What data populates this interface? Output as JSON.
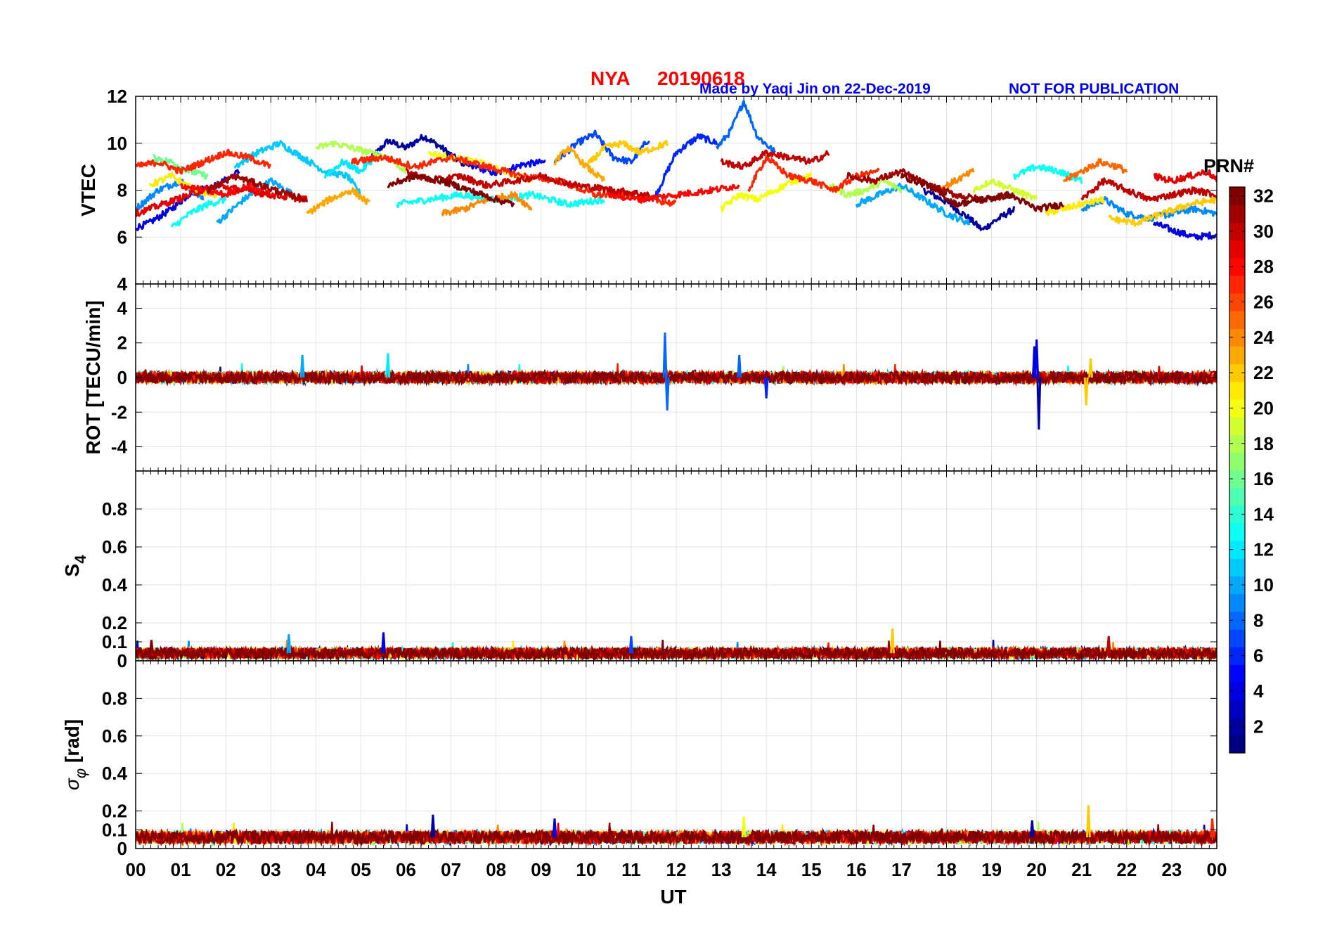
{
  "title": {
    "station": "NYA",
    "date": "20190618",
    "credit": "Made by Yaqi Jin on 22-Dec-2019",
    "notice": "NOT FOR PUBLICATION",
    "title_color": "#ff0000",
    "credit_color": "#0000ff"
  },
  "x_axis": {
    "label": "UT",
    "range": [
      0,
      24
    ],
    "tick_labels": [
      "00",
      "01",
      "02",
      "03",
      "04",
      "05",
      "06",
      "07",
      "08",
      "09",
      "10",
      "11",
      "12",
      "13",
      "14",
      "15",
      "16",
      "17",
      "18",
      "19",
      "20",
      "21",
      "22",
      "23",
      "00"
    ]
  },
  "colorbar": {
    "label": "PRN#",
    "range": [
      1,
      32
    ],
    "tick_values": [
      2,
      4,
      6,
      8,
      10,
      12,
      14,
      16,
      18,
      20,
      22,
      24,
      26,
      28,
      30,
      32
    ],
    "tick_labels": [
      "2",
      "4",
      "6",
      "8",
      "10",
      "12",
      "14",
      "16",
      "18",
      "20",
      "22",
      "24",
      "26",
      "28",
      "30",
      "32"
    ],
    "colormap": "jet"
  },
  "chart_data": [
    {
      "type": "line",
      "panel": "vtec",
      "ylabel": "VTEC",
      "ylim": [
        4,
        12
      ],
      "yticks": [
        4,
        6,
        8,
        10,
        12
      ],
      "ytick_labels": [
        "4",
        "6",
        "8",
        "10",
        "12"
      ],
      "grid": true,
      "xlim": [
        0,
        24
      ],
      "series": [
        {
          "prn": 2,
          "x": [
            5.2,
            5.6,
            6.0,
            6.4,
            6.8,
            7.2,
            7.6
          ],
          "y": [
            9.3,
            10.1,
            9.8,
            10.3,
            9.8,
            9.2,
            9.0
          ]
        },
        {
          "prn": 2,
          "x": [
            17.5,
            18.0,
            18.5,
            18.8,
            19.0,
            19.5
          ],
          "y": [
            8.0,
            7.5,
            6.8,
            6.3,
            6.6,
            7.2
          ]
        },
        {
          "prn": 5,
          "x": [
            7.4,
            8.0,
            8.6,
            9.1
          ],
          "y": [
            9.1,
            8.7,
            9.1,
            9.2
          ]
        },
        {
          "prn": 4,
          "x": [
            0.0,
            0.3,
            0.8,
            1.3,
            1.8,
            2.3
          ],
          "y": [
            6.4,
            6.6,
            7.2,
            8.0,
            8.2,
            8.8
          ]
        },
        {
          "prn": 4,
          "x": [
            22.6,
            23.0,
            23.5,
            24.0
          ],
          "y": [
            6.6,
            6.3,
            6.0,
            6.1
          ]
        },
        {
          "prn": 6,
          "x": [
            11.5,
            12.0,
            12.5,
            12.9
          ],
          "y": [
            7.6,
            9.6,
            10.3,
            10.0
          ]
        },
        {
          "prn": 7,
          "x": [
            9.3,
            9.8,
            10.2,
            10.6,
            11.0,
            11.4
          ],
          "y": [
            9.2,
            10.0,
            10.4,
            9.4,
            9.2,
            10.2
          ]
        },
        {
          "prn": 8,
          "x": [
            12.9,
            13.2,
            13.5,
            13.8,
            14.2
          ],
          "y": [
            9.8,
            10.5,
            11.8,
            10.3,
            9.6
          ]
        },
        {
          "prn": 9,
          "x": [
            0.0,
            0.5,
            1.0,
            1.5
          ],
          "y": [
            7.2,
            8.0,
            8.4,
            7.6
          ]
        },
        {
          "prn": 9,
          "x": [
            21.0,
            21.5,
            22.0,
            22.5,
            23.0,
            23.5,
            24.0
          ],
          "y": [
            7.2,
            7.6,
            7.0,
            6.8,
            7.0,
            7.2,
            7.0
          ]
        },
        {
          "prn": 10,
          "x": [
            1.8,
            2.4,
            3.0,
            3.5
          ],
          "y": [
            6.6,
            7.6,
            8.4,
            7.8
          ]
        },
        {
          "prn": 10,
          "x": [
            16.0,
            16.5,
            17.0,
            17.5,
            18.0,
            18.5
          ],
          "y": [
            7.4,
            7.8,
            8.2,
            7.6,
            7.0,
            6.6
          ]
        },
        {
          "prn": 11,
          "x": [
            2.2,
            2.7,
            3.2,
            3.7,
            4.2,
            4.7,
            5.0
          ],
          "y": [
            9.0,
            9.6,
            10.0,
            9.4,
            8.8,
            8.6,
            7.8
          ]
        },
        {
          "prn": 12,
          "x": [
            4.2,
            4.6,
            5.0,
            5.4
          ],
          "y": [
            8.6,
            9.2,
            8.8,
            9.6
          ]
        },
        {
          "prn": 13,
          "x": [
            0.8,
            1.2,
            1.6,
            2.0
          ],
          "y": [
            6.4,
            7.0,
            7.4,
            7.6
          ]
        },
        {
          "prn": 13,
          "x": [
            5.8,
            6.5,
            7.2,
            8.0,
            8.8,
            9.6,
            10.4
          ],
          "y": [
            7.4,
            7.6,
            7.8,
            7.6,
            7.8,
            7.4,
            7.6
          ]
        },
        {
          "prn": 13,
          "x": [
            19.5,
            20.0,
            20.5,
            21.0
          ],
          "y": [
            8.6,
            9.0,
            8.8,
            8.4
          ]
        },
        {
          "prn": 16,
          "x": [
            0.4,
            0.8,
            1.2,
            1.6
          ],
          "y": [
            9.4,
            9.2,
            8.8,
            8.6
          ]
        },
        {
          "prn": 18,
          "x": [
            4.0,
            4.4,
            4.8,
            5.2,
            5.6,
            6.0
          ],
          "y": [
            9.8,
            10.0,
            9.8,
            9.6,
            9.4,
            8.8
          ]
        },
        {
          "prn": 18,
          "x": [
            15.4,
            15.8,
            16.2,
            16.6,
            17.0
          ],
          "y": [
            8.2,
            7.8,
            8.0,
            8.4,
            8.0
          ]
        },
        {
          "prn": 19,
          "x": [
            18.6,
            19.0,
            19.5,
            20.0
          ],
          "y": [
            8.0,
            8.4,
            8.0,
            7.6
          ]
        },
        {
          "prn": 20,
          "x": [
            6.5,
            7.0,
            7.6,
            8.2,
            8.8
          ],
          "y": [
            9.6,
            9.4,
            9.2,
            8.8,
            8.4
          ]
        },
        {
          "prn": 20,
          "x": [
            13.0,
            13.4,
            13.8,
            14.2,
            14.6,
            15.0
          ],
          "y": [
            7.2,
            7.8,
            7.6,
            8.0,
            8.4,
            8.6
          ]
        },
        {
          "prn": 21,
          "x": [
            0.3,
            0.8,
            1.3,
            1.8
          ],
          "y": [
            8.2,
            8.6,
            8.0,
            7.8
          ]
        },
        {
          "prn": 21,
          "x": [
            20.2,
            20.6,
            21.0,
            21.5
          ],
          "y": [
            7.0,
            7.2,
            7.4,
            7.6
          ]
        },
        {
          "prn": 22,
          "x": [
            10.0,
            10.4,
            10.8,
            11.2,
            11.8
          ],
          "y": [
            9.0,
            9.8,
            10.0,
            9.6,
            10.0
          ]
        },
        {
          "prn": 22,
          "x": [
            21.6,
            22.2,
            22.8,
            23.4,
            24.0
          ],
          "y": [
            6.8,
            6.6,
            7.0,
            7.4,
            7.6
          ]
        },
        {
          "prn": 23,
          "x": [
            3.8,
            4.3,
            4.8,
            5.2
          ],
          "y": [
            7.0,
            7.6,
            8.0,
            7.4
          ]
        },
        {
          "prn": 23,
          "x": [
            9.3,
            9.6,
            10.0,
            10.4
          ],
          "y": [
            9.2,
            9.8,
            9.0,
            8.4
          ]
        },
        {
          "prn": 24,
          "x": [
            6.8,
            7.3,
            7.8,
            8.4,
            8.8
          ],
          "y": [
            7.0,
            7.2,
            7.6,
            7.8,
            7.2
          ]
        },
        {
          "prn": 24,
          "x": [
            17.8,
            18.2,
            18.6
          ],
          "y": [
            8.0,
            8.4,
            8.8
          ]
        },
        {
          "prn": 25,
          "x": [
            20.6,
            21.0,
            21.4,
            21.8,
            22.0
          ],
          "y": [
            8.4,
            8.8,
            9.2,
            9.0,
            8.8
          ]
        },
        {
          "prn": 27,
          "x": [
            0.0,
            0.5,
            1.0,
            1.5,
            2.0,
            2.5,
            3.0
          ],
          "y": [
            9.0,
            9.2,
            8.8,
            9.2,
            9.6,
            9.4,
            9.0
          ]
        },
        {
          "prn": 27,
          "x": [
            4.8,
            5.5,
            6.2,
            7.0,
            7.8,
            8.6,
            9.4,
            10.2,
            11.0,
            12.0
          ],
          "y": [
            9.2,
            9.4,
            9.0,
            9.4,
            9.0,
            8.6,
            8.4,
            7.8,
            7.8,
            7.4
          ]
        },
        {
          "prn": 27,
          "x": [
            13.6,
            14.0,
            14.5,
            15.0,
            15.5,
            16.0,
            16.5
          ],
          "y": [
            8.0,
            9.4,
            8.6,
            8.4,
            8.0,
            8.6,
            8.8
          ]
        },
        {
          "prn": 28,
          "x": [
            1.0,
            1.5,
            2.0,
            2.5,
            3.0
          ],
          "y": [
            8.2,
            8.0,
            7.8,
            8.2,
            7.8
          ]
        },
        {
          "prn": 28,
          "x": [
            10.5,
            11.2,
            12.0,
            12.8,
            13.4
          ],
          "y": [
            7.8,
            7.6,
            7.8,
            8.0,
            8.2
          ]
        },
        {
          "prn": 29,
          "x": [
            0.0,
            0.6,
            1.2,
            1.8,
            2.4,
            3.0,
            3.8
          ],
          "y": [
            7.0,
            7.4,
            7.8,
            8.2,
            8.0,
            7.8,
            7.6
          ]
        },
        {
          "prn": 29,
          "x": [
            22.6,
            23.0,
            23.4,
            23.8,
            24.0
          ],
          "y": [
            8.6,
            8.4,
            8.6,
            8.8,
            8.4
          ]
        },
        {
          "prn": 30,
          "x": [
            6.0,
            6.6,
            7.2,
            7.8,
            8.4,
            9.0,
            9.8,
            10.6,
            11.4
          ],
          "y": [
            8.8,
            8.4,
            8.6,
            8.2,
            8.4,
            8.6,
            8.2,
            8.0,
            7.8
          ]
        },
        {
          "prn": 30,
          "x": [
            13.0,
            13.5,
            14.0,
            14.5,
            15.0,
            15.4
          ],
          "y": [
            9.2,
            9.0,
            9.6,
            9.4,
            9.2,
            9.6
          ]
        },
        {
          "prn": 30,
          "x": [
            21.0,
            21.5,
            22.0,
            22.5,
            23.0,
            23.5,
            24.0
          ],
          "y": [
            7.6,
            8.4,
            8.0,
            7.6,
            7.8,
            8.0,
            7.8
          ]
        },
        {
          "prn": 31,
          "x": [
            1.6,
            2.2,
            2.8,
            3.4,
            3.8
          ],
          "y": [
            8.0,
            8.6,
            8.2,
            7.8,
            7.6
          ]
        },
        {
          "prn": 31,
          "x": [
            15.8,
            16.4,
            17.0,
            17.6,
            18.2,
            18.8,
            19.4
          ],
          "y": [
            8.6,
            8.4,
            8.8,
            8.2,
            7.8,
            7.6,
            7.8
          ]
        },
        {
          "prn": 32,
          "x": [
            5.6,
            6.2,
            6.8,
            7.4,
            8.0,
            8.4
          ],
          "y": [
            8.2,
            8.6,
            8.4,
            8.0,
            7.6,
            7.4
          ]
        },
        {
          "prn": 32,
          "x": [
            17.0,
            17.6,
            18.2,
            18.8,
            19.4,
            20.0,
            20.6
          ],
          "y": [
            8.6,
            8.2,
            7.4,
            7.6,
            7.8,
            7.2,
            7.4
          ]
        }
      ]
    },
    {
      "type": "line",
      "panel": "rot",
      "ylabel": "ROT [TECU/min]",
      "ylim": [
        -5.4,
        5.4
      ],
      "yticks": [
        -4,
        -2,
        0,
        2,
        4
      ],
      "ytick_labels": [
        "-4",
        "-2",
        "0",
        "2",
        "4"
      ],
      "grid": true,
      "xlim": [
        0,
        24
      ],
      "baseline": 0,
      "noise_amplitude": 0.35,
      "spikes": [
        {
          "prn": 8,
          "x": 11.75,
          "y": 2.6
        },
        {
          "prn": 8,
          "x": 11.8,
          "y": -1.9
        },
        {
          "prn": 10,
          "x": 3.7,
          "y": 1.3
        },
        {
          "prn": 12,
          "x": 5.6,
          "y": 1.4
        },
        {
          "prn": 8,
          "x": 13.4,
          "y": 1.3
        },
        {
          "prn": 6,
          "x": 14.0,
          "y": -1.2
        },
        {
          "prn": 4,
          "x": 19.95,
          "y": 1.8
        },
        {
          "prn": 4,
          "x": 20.0,
          "y": 2.2
        },
        {
          "prn": 2,
          "x": 20.05,
          "y": -3.0
        },
        {
          "prn": 22,
          "x": 21.1,
          "y": -1.6
        },
        {
          "prn": 22,
          "x": 21.2,
          "y": 1.1
        }
      ]
    },
    {
      "type": "line",
      "panel": "s4",
      "ylabel": "S4",
      "ylim": [
        0,
        1
      ],
      "yticks": [
        0,
        0.1,
        0.2,
        0.4,
        0.6,
        0.8
      ],
      "ytick_labels": [
        "0",
        "0.1",
        "0.2",
        "0.4",
        "0.6",
        "0.8"
      ],
      "grid": true,
      "xlim": [
        0,
        24
      ],
      "baseline": 0.04,
      "noise_amplitude": 0.03,
      "spikes": [
        {
          "prn": 32,
          "x": 0.35,
          "y": 0.11
        },
        {
          "prn": 10,
          "x": 3.4,
          "y": 0.14
        },
        {
          "prn": 4,
          "x": 5.5,
          "y": 0.15
        },
        {
          "prn": 7,
          "x": 11.0,
          "y": 0.13
        },
        {
          "prn": 22,
          "x": 16.8,
          "y": 0.17
        },
        {
          "prn": 30,
          "x": 21.6,
          "y": 0.13
        }
      ]
    },
    {
      "type": "line",
      "panel": "sigma_phi",
      "ylabel": "σφ [rad]",
      "ylim": [
        0,
        1
      ],
      "yticks": [
        0,
        0.1,
        0.2,
        0.4,
        0.6,
        0.8
      ],
      "ytick_labels": [
        "0",
        "0.1",
        "0.2",
        "0.4",
        "0.6",
        "0.8"
      ],
      "grid": true,
      "xlim": [
        0,
        24
      ],
      "baseline": 0.06,
      "noise_amplitude": 0.035,
      "spikes": [
        {
          "prn": 2,
          "x": 6.6,
          "y": 0.18
        },
        {
          "prn": 4,
          "x": 9.3,
          "y": 0.16
        },
        {
          "prn": 20,
          "x": 13.5,
          "y": 0.17
        },
        {
          "prn": 2,
          "x": 19.9,
          "y": 0.15
        },
        {
          "prn": 22,
          "x": 21.15,
          "y": 0.23
        },
        {
          "prn": 27,
          "x": 23.9,
          "y": 0.16
        }
      ]
    }
  ]
}
